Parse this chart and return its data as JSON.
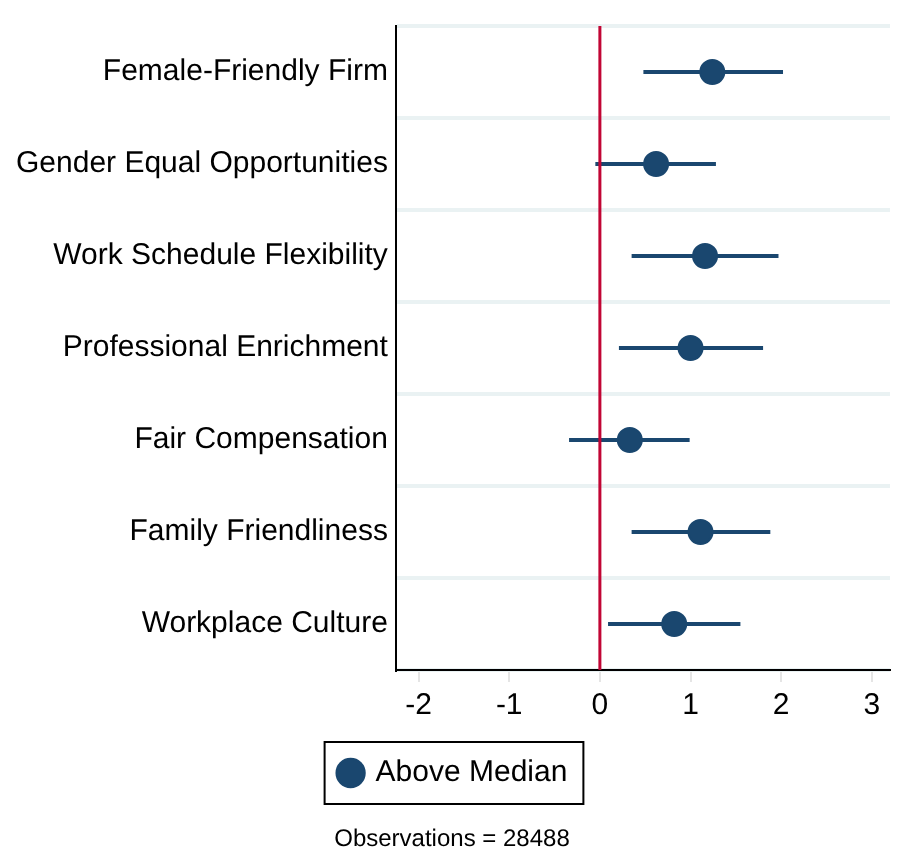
{
  "chart_data": {
    "type": "scatter",
    "orientation": "horizontal",
    "categories": [
      "Female-Friendly Firm",
      "Gender Equal Opportunities",
      "Work Schedule Flexibility",
      "Professional Enrichment",
      "Fair Compensation",
      "Family Friendliness",
      "Workplace Culture"
    ],
    "series": [
      {
        "name": "Above Median",
        "color": "#1a476f",
        "values": [
          1.24,
          0.62,
          1.16,
          1.0,
          0.33,
          1.11,
          0.82
        ],
        "errors": [
          [
            0.48,
            2.02
          ],
          [
            -0.05,
            1.28
          ],
          [
            0.35,
            1.97
          ],
          [
            0.21,
            1.8
          ],
          [
            -0.34,
            0.99
          ],
          [
            0.35,
            1.88
          ],
          [
            0.09,
            1.55
          ]
        ]
      }
    ],
    "xlim": [
      -2.25,
      3.2
    ],
    "xticks": [
      -2,
      -1,
      0,
      1,
      2,
      3
    ],
    "ref_lines": [
      {
        "axis": "x",
        "value": 0,
        "color": "#c10534"
      }
    ],
    "grid": "y",
    "legend": "bottom",
    "marker": "circle",
    "annotations": [
      "Observations = 28488"
    ]
  }
}
